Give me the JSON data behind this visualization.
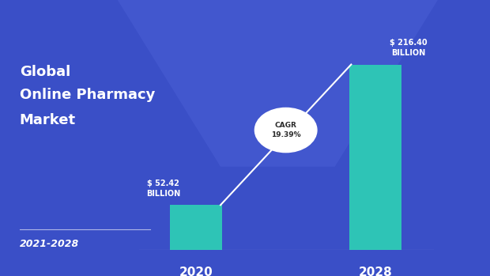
{
  "categories": [
    "2020",
    "2028"
  ],
  "values": [
    52.42,
    216.4
  ],
  "bar_color": "#2ec4b6",
  "bg_color": "#3a4fc7",
  "title_line1": "Global",
  "title_line2": "Online Pharmacy",
  "title_line3": "Market",
  "subtitle": "2021-2028",
  "label1": "$ 52.42\nBILLION",
  "label2": "$ 216.40\nBILLION",
  "cagr_label": "CAGR\n19.39%",
  "bar_width": 0.32,
  "ylim": [
    0,
    270
  ]
}
